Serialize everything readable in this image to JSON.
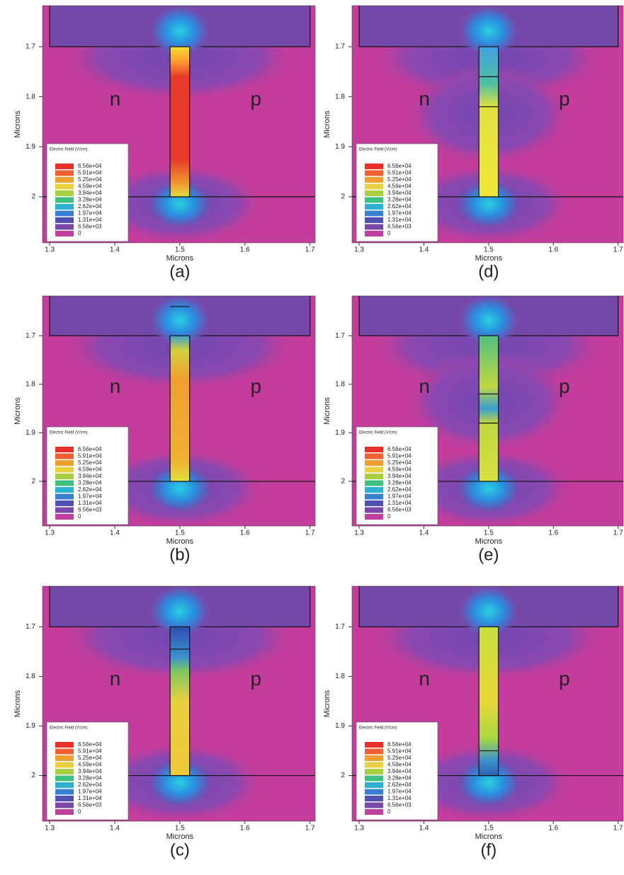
{
  "chart_data": {
    "type": "contour",
    "x_axis_label": "Microns",
    "y_axis_label": "Microns",
    "xlim": [
      1.289,
      1.708
    ],
    "ylim": [
      1.618,
      2.092
    ],
    "xticks": [
      1.3,
      1.4,
      1.5,
      1.6,
      1.7
    ],
    "yticks": [
      1.7,
      1.8,
      1.9,
      2
    ],
    "region_labels": [
      "n",
      "p"
    ],
    "legend": {
      "title": "Electric Field (V/cm)",
      "labels": [
        "6.56e+04",
        "5.91e+04",
        "5.25e+04",
        "4.59e+04",
        "3.94e+04",
        "3.28e+04",
        "2.62e+04",
        "1.97e+04",
        "1.31e+04",
        "6.56e+03",
        "0"
      ]
    },
    "panels": [
      {
        "label": "(a)"
      },
      {
        "label": "(d)"
      },
      {
        "label": "(b)"
      },
      {
        "label": "(e)"
      },
      {
        "label": "(c)"
      },
      {
        "label": "(f)"
      }
    ]
  }
}
